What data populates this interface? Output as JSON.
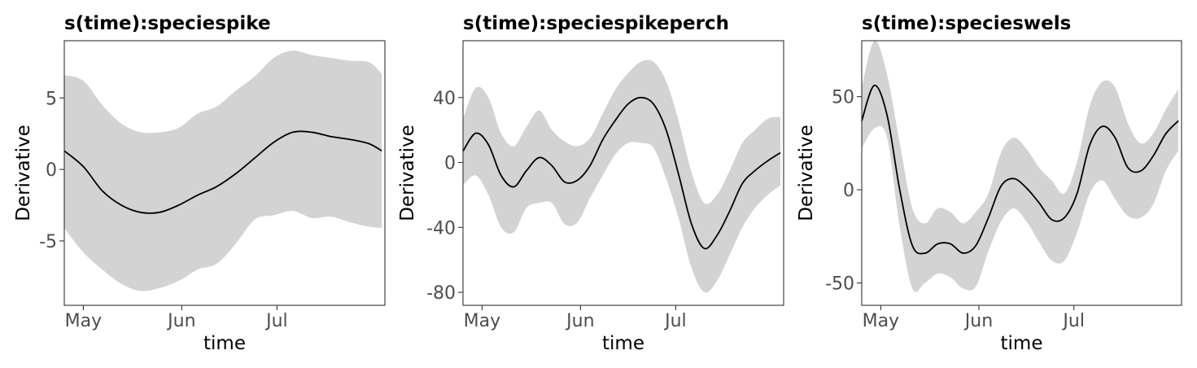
{
  "chart_data": [
    {
      "type": "line",
      "title": "s(time):speciespike",
      "xlabel": "time",
      "ylabel": "Derivative",
      "x_ticks": [
        "May",
        "Jun",
        "Jul"
      ],
      "x_tick_dates": [
        "2019-05-01",
        "2019-06-01",
        "2019-07-01"
      ],
      "xlim": [
        "2019-04-25",
        "2019-08-04"
      ],
      "ylim": [
        -9.5,
        9
      ],
      "y_ticks": [
        -5,
        0,
        5
      ],
      "y_tick_labels": [
        "-5",
        "0",
        "5"
      ],
      "grid": false,
      "ribbon_color": "#d3d3d3",
      "line_color": "#000000",
      "series": [
        {
          "x": [
            "2019-04-25",
            "2019-05-01",
            "2019-05-07",
            "2019-05-13",
            "2019-05-19",
            "2019-05-25",
            "2019-05-31",
            "2019-06-06",
            "2019-06-12",
            "2019-06-18",
            "2019-06-24",
            "2019-06-30",
            "2019-07-06",
            "2019-07-12",
            "2019-07-18",
            "2019-07-24",
            "2019-07-30",
            "2019-08-03"
          ],
          "y": [
            1.3,
            0.2,
            -1.5,
            -2.5,
            -3.0,
            -3.0,
            -2.5,
            -1.8,
            -1.2,
            -0.3,
            0.8,
            1.9,
            2.6,
            2.6,
            2.3,
            2.1,
            1.8,
            1.3
          ],
          "lower": [
            -4.1,
            -5.8,
            -7.0,
            -8.0,
            -8.5,
            -8.3,
            -7.8,
            -7.0,
            -6.6,
            -5.2,
            -3.5,
            -3.2,
            -2.9,
            -3.4,
            -3.3,
            -3.7,
            -4.0,
            -4.1
          ],
          "upper": [
            6.6,
            6.2,
            4.5,
            3.2,
            2.6,
            2.6,
            2.9,
            3.9,
            4.4,
            5.5,
            6.5,
            7.8,
            8.3,
            8.0,
            7.8,
            7.6,
            7.5,
            6.7
          ]
        }
      ]
    },
    {
      "type": "line",
      "title": "s(time):speciespikeperch",
      "xlabel": "time",
      "ylabel": "Derivative",
      "x_ticks": [
        "May",
        "Jun",
        "Jul"
      ],
      "x_tick_dates": [
        "2019-05-01",
        "2019-06-01",
        "2019-07-01"
      ],
      "xlim": [
        "2019-04-25",
        "2019-08-04"
      ],
      "ylim": [
        -88,
        75
      ],
      "y_ticks": [
        -80,
        -40,
        0,
        40
      ],
      "y_tick_labels": [
        "-80",
        "-40",
        "0",
        "40"
      ],
      "grid": false,
      "ribbon_color": "#d3d3d3",
      "line_color": "#000000",
      "series": [
        {
          "x": [
            "2019-04-25",
            "2019-04-29",
            "2019-05-03",
            "2019-05-07",
            "2019-05-11",
            "2019-05-15",
            "2019-05-19",
            "2019-05-23",
            "2019-05-27",
            "2019-05-31",
            "2019-06-04",
            "2019-06-08",
            "2019-06-12",
            "2019-06-16",
            "2019-06-20",
            "2019-06-24",
            "2019-06-28",
            "2019-07-02",
            "2019-07-06",
            "2019-07-10",
            "2019-07-14",
            "2019-07-18",
            "2019-07-22",
            "2019-07-26",
            "2019-07-30",
            "2019-08-03"
          ],
          "y": [
            7,
            18,
            11,
            -8,
            -15,
            -5,
            3,
            -2,
            -12,
            -11,
            -2,
            14,
            26,
            36,
            40,
            36,
            20,
            -8,
            -38,
            -53,
            -45,
            -30,
            -13,
            -5,
            1,
            6
          ],
          "lower": [
            -14,
            -8,
            -20,
            -40,
            -43,
            -28,
            -25,
            -25,
            -38,
            -37,
            -22,
            -8,
            5,
            12,
            12,
            9,
            -10,
            -35,
            -65,
            -80,
            -73,
            -57,
            -40,
            -28,
            -20,
            -14
          ],
          "upper": [
            27,
            46,
            40,
            18,
            10,
            22,
            32,
            20,
            13,
            10,
            15,
            30,
            45,
            55,
            62,
            62,
            50,
            25,
            -6,
            -25,
            -20,
            -5,
            12,
            20,
            27,
            28
          ]
        }
      ]
    },
    {
      "type": "line",
      "title": "s(time):specieswels",
      "xlabel": "time",
      "ylabel": "Derivative",
      "x_ticks": [
        "May",
        "Jun",
        "Jul"
      ],
      "x_tick_dates": [
        "2019-05-01",
        "2019-06-01",
        "2019-07-01"
      ],
      "xlim": [
        "2019-04-25",
        "2019-08-04"
      ],
      "ylim": [
        -62,
        80
      ],
      "y_ticks": [
        -50,
        0,
        50
      ],
      "y_tick_labels": [
        "-50",
        "0",
        "50"
      ],
      "grid": false,
      "ribbon_color": "#d3d3d3",
      "line_color": "#000000",
      "series": [
        {
          "x": [
            "2019-04-25",
            "2019-04-29",
            "2019-05-03",
            "2019-05-07",
            "2019-05-11",
            "2019-05-15",
            "2019-05-19",
            "2019-05-23",
            "2019-05-27",
            "2019-05-31",
            "2019-06-04",
            "2019-06-08",
            "2019-06-12",
            "2019-06-16",
            "2019-06-20",
            "2019-06-24",
            "2019-06-28",
            "2019-07-02",
            "2019-07-06",
            "2019-07-10",
            "2019-07-14",
            "2019-07-18",
            "2019-07-22",
            "2019-07-26",
            "2019-07-30",
            "2019-08-03"
          ],
          "y": [
            37,
            56,
            40,
            0,
            -30,
            -34,
            -29,
            -29,
            -34,
            -30,
            -15,
            2,
            6,
            1,
            -7,
            -16,
            -15,
            -2,
            24,
            34,
            28,
            12,
            10,
            18,
            30,
            37
          ],
          "lower": [
            22,
            33,
            28,
            -20,
            -53,
            -50,
            -45,
            -47,
            -53,
            -52,
            -33,
            -17,
            -10,
            -17,
            -28,
            -38,
            -38,
            -23,
            -2,
            5,
            -5,
            -14,
            -15,
            -8,
            10,
            21
          ],
          "upper": [
            55,
            80,
            62,
            25,
            -10,
            -18,
            -10,
            -12,
            -18,
            -12,
            -2,
            20,
            28,
            22,
            12,
            5,
            -2,
            15,
            45,
            58,
            55,
            36,
            25,
            30,
            43,
            54
          ]
        }
      ]
    }
  ]
}
